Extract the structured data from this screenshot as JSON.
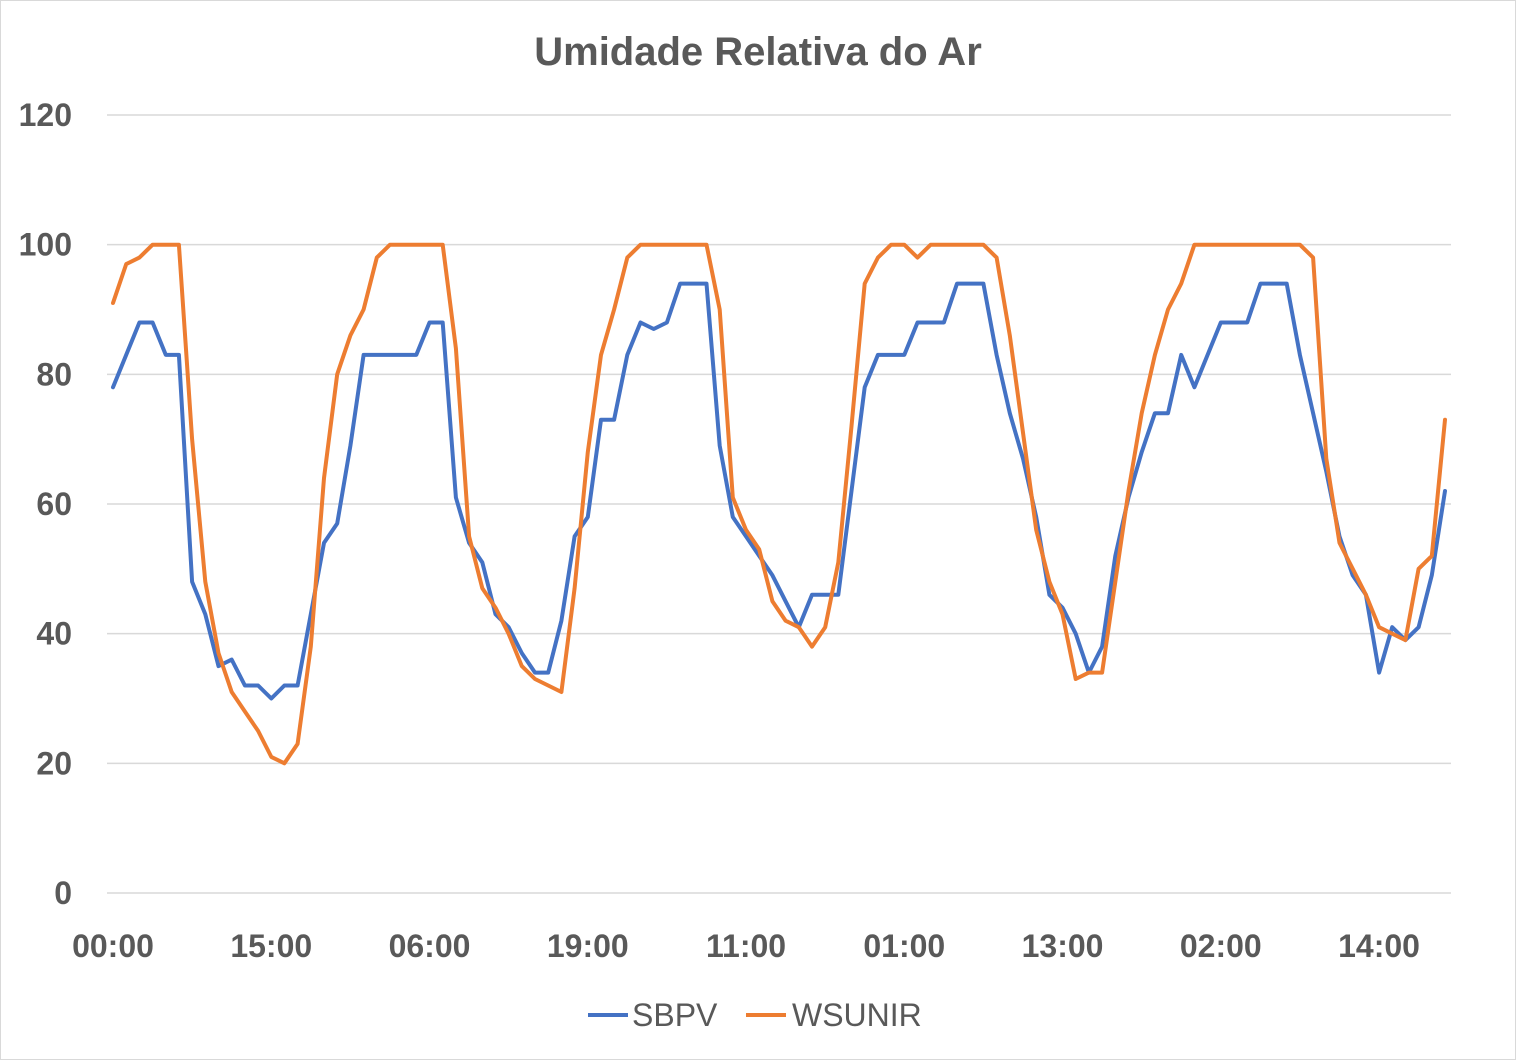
{
  "chart_data": {
    "type": "line",
    "title": "Umidade Relativa do Ar",
    "xlabel": "",
    "ylabel": "",
    "ylim": [
      0,
      120
    ],
    "yticks": [
      0,
      20,
      40,
      60,
      80,
      100,
      120
    ],
    "grid": true,
    "legend": "bottom",
    "x_tick_labels": [
      "00:00",
      "15:00",
      "06:00",
      "19:00",
      "11:00",
      "01:00",
      "13:00",
      "02:00",
      "14:00"
    ],
    "x_tick_index": [
      0,
      12,
      24,
      36,
      48,
      60,
      72,
      84,
      96
    ],
    "series": [
      {
        "name": "SBPV",
        "color": "#4472c4",
        "values": [
          78,
          83,
          88,
          88,
          83,
          83,
          48,
          43,
          35,
          36,
          32,
          32,
          30,
          32,
          32,
          43,
          54,
          57,
          69,
          83,
          83,
          83,
          83,
          83,
          88,
          88,
          61,
          54,
          51,
          43,
          41,
          37,
          34,
          34,
          42,
          55,
          58,
          73,
          73,
          83,
          88,
          87,
          88,
          94,
          94,
          94,
          69,
          58,
          55,
          52,
          49,
          45,
          41,
          46,
          46,
          46,
          62,
          78,
          83,
          83,
          83,
          88,
          88,
          88,
          94,
          94,
          94,
          83,
          74,
          67,
          58,
          46,
          44,
          40,
          34,
          38,
          52,
          61,
          68,
          74,
          74,
          83,
          78,
          83,
          88,
          88,
          88,
          94,
          94,
          94,
          83,
          74,
          65,
          55,
          49,
          46,
          34,
          41,
          39,
          41,
          49,
          62
        ]
      },
      {
        "name": "WSUNIR",
        "color": "#ed7d31",
        "values": [
          91,
          97,
          98,
          100,
          100,
          100,
          70,
          48,
          37,
          31,
          28,
          25,
          21,
          20,
          23,
          38,
          64,
          80,
          86,
          90,
          98,
          100,
          100,
          100,
          100,
          100,
          84,
          55,
          47,
          44,
          40,
          35,
          33,
          32,
          31,
          47,
          68,
          83,
          90,
          98,
          100,
          100,
          100,
          100,
          100,
          100,
          90,
          61,
          56,
          53,
          45,
          42,
          41,
          38,
          41,
          51,
          72,
          94,
          98,
          100,
          100,
          98,
          100,
          100,
          100,
          100,
          100,
          98,
          86,
          71,
          56,
          48,
          43,
          33,
          34,
          34,
          48,
          62,
          74,
          83,
          90,
          94,
          100,
          100,
          100,
          100,
          100,
          100,
          100,
          100,
          100,
          98,
          67,
          54,
          50,
          46,
          41,
          40,
          39,
          50,
          52,
          73
        ]
      }
    ]
  }
}
